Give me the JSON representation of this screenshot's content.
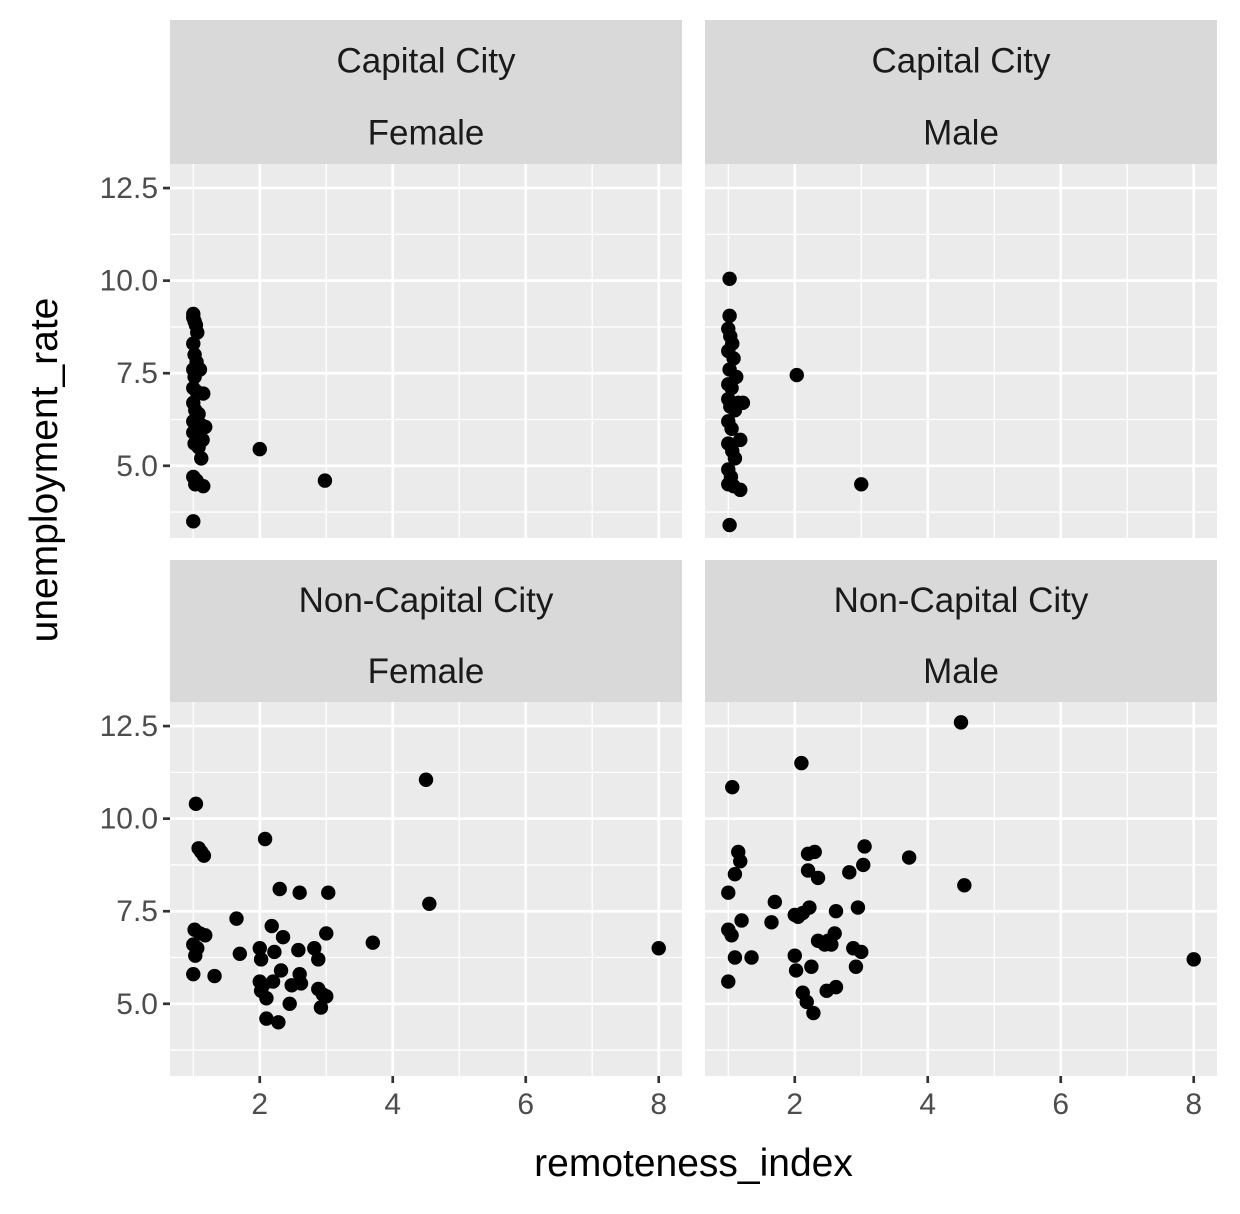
{
  "chart_data": {
    "type": "scatter",
    "xlabel": "remoteness_index",
    "ylabel": "unemployment_rate",
    "xlim": [
      0.65,
      8.35
    ],
    "ylim": [
      3.05,
      13.15
    ],
    "x_ticks": [
      2,
      4,
      6,
      8
    ],
    "x_tick_labels": [
      "2",
      "4",
      "6",
      "8"
    ],
    "y_ticks": [
      5,
      7.5,
      10,
      12.5
    ],
    "y_tick_labels": [
      "5.0",
      "7.5",
      "10.0",
      "12.5"
    ],
    "grid": true,
    "point_color": "#000000",
    "panel_background": "#ebebeb",
    "strip_background": "#d9d9d9",
    "panels": [
      {
        "strip": [
          "Capital City",
          "Female"
        ],
        "points": [
          [
            1.0,
            9.1
          ],
          [
            1.0,
            9.0
          ],
          [
            1.02,
            8.9
          ],
          [
            1.04,
            8.8
          ],
          [
            1.06,
            8.6
          ],
          [
            1.0,
            8.3
          ],
          [
            1.02,
            8.0
          ],
          [
            1.05,
            7.8
          ],
          [
            1.0,
            7.6
          ],
          [
            1.1,
            7.6
          ],
          [
            1.02,
            7.4
          ],
          [
            1.0,
            7.1
          ],
          [
            1.05,
            7.0
          ],
          [
            1.15,
            6.95
          ],
          [
            1.0,
            6.7
          ],
          [
            1.03,
            6.5
          ],
          [
            1.08,
            6.4
          ],
          [
            1.0,
            6.2
          ],
          [
            1.12,
            6.1
          ],
          [
            1.18,
            6.05
          ],
          [
            1.0,
            5.9
          ],
          [
            1.06,
            5.8
          ],
          [
            1.14,
            5.7
          ],
          [
            1.02,
            5.6
          ],
          [
            1.08,
            5.5
          ],
          [
            1.12,
            5.2
          ],
          [
            1.0,
            4.7
          ],
          [
            1.05,
            4.6
          ],
          [
            1.03,
            4.5
          ],
          [
            1.15,
            4.45
          ],
          [
            1.0,
            3.5
          ],
          [
            2.0,
            5.45
          ],
          [
            2.98,
            4.6
          ]
        ]
      },
      {
        "strip": [
          "Capital City",
          "Male"
        ],
        "points": [
          [
            1.02,
            10.05
          ],
          [
            1.02,
            9.05
          ],
          [
            1.0,
            8.7
          ],
          [
            1.03,
            8.5
          ],
          [
            1.06,
            8.3
          ],
          [
            1.0,
            8.1
          ],
          [
            1.08,
            7.9
          ],
          [
            1.02,
            7.6
          ],
          [
            1.12,
            7.4
          ],
          [
            1.0,
            7.2
          ],
          [
            1.05,
            7.1
          ],
          [
            1.0,
            6.8
          ],
          [
            1.15,
            6.7
          ],
          [
            1.22,
            6.7
          ],
          [
            1.03,
            6.6
          ],
          [
            1.1,
            6.5
          ],
          [
            1.0,
            6.2
          ],
          [
            1.05,
            6.0
          ],
          [
            1.18,
            5.7
          ],
          [
            1.0,
            5.6
          ],
          [
            1.06,
            5.4
          ],
          [
            1.1,
            5.2
          ],
          [
            1.0,
            4.9
          ],
          [
            1.04,
            4.7
          ],
          [
            1.0,
            4.5
          ],
          [
            1.08,
            4.45
          ],
          [
            1.18,
            4.35
          ],
          [
            1.02,
            3.4
          ],
          [
            2.03,
            7.45
          ],
          [
            3.0,
            4.5
          ]
        ]
      },
      {
        "strip": [
          "Non-Capital City",
          "Female"
        ],
        "points": [
          [
            1.04,
            10.4
          ],
          [
            1.08,
            9.2
          ],
          [
            1.12,
            9.1
          ],
          [
            1.16,
            9.0
          ],
          [
            1.02,
            7.0
          ],
          [
            1.1,
            6.9
          ],
          [
            1.18,
            6.85
          ],
          [
            1.0,
            6.6
          ],
          [
            1.06,
            6.5
          ],
          [
            1.03,
            6.3
          ],
          [
            1.0,
            5.8
          ],
          [
            1.32,
            5.75
          ],
          [
            1.65,
            7.3
          ],
          [
            1.7,
            6.35
          ],
          [
            2.0,
            6.5
          ],
          [
            2.02,
            6.2
          ],
          [
            2.0,
            5.6
          ],
          [
            2.05,
            5.5
          ],
          [
            2.02,
            5.35
          ],
          [
            2.1,
            5.15
          ],
          [
            2.1,
            4.6
          ],
          [
            2.08,
            9.45
          ],
          [
            2.18,
            7.1
          ],
          [
            2.22,
            6.4
          ],
          [
            2.2,
            5.6
          ],
          [
            2.28,
            4.5
          ],
          [
            2.3,
            8.1
          ],
          [
            2.35,
            6.8
          ],
          [
            2.32,
            5.9
          ],
          [
            2.45,
            5.0
          ],
          [
            2.48,
            5.5
          ],
          [
            2.6,
            8.0
          ],
          [
            2.58,
            6.45
          ],
          [
            2.6,
            5.8
          ],
          [
            2.62,
            5.55
          ],
          [
            2.82,
            6.5
          ],
          [
            2.88,
            6.2
          ],
          [
            2.88,
            5.4
          ],
          [
            2.92,
            4.9
          ],
          [
            2.95,
            5.25
          ],
          [
            3.0,
            5.2
          ],
          [
            3.0,
            6.9
          ],
          [
            3.03,
            8.0
          ],
          [
            3.7,
            6.65
          ],
          [
            4.5,
            11.05
          ],
          [
            4.55,
            7.7
          ],
          [
            8.0,
            6.5
          ]
        ]
      },
      {
        "strip": [
          "Non-Capital City",
          "Male"
        ],
        "points": [
          [
            1.06,
            10.85
          ],
          [
            1.0,
            8.0
          ],
          [
            1.1,
            8.5
          ],
          [
            1.15,
            9.1
          ],
          [
            1.18,
            8.85
          ],
          [
            1.0,
            7.0
          ],
          [
            1.05,
            6.85
          ],
          [
            1.2,
            7.25
          ],
          [
            1.1,
            6.25
          ],
          [
            1.0,
            5.6
          ],
          [
            1.35,
            6.25
          ],
          [
            1.7,
            7.75
          ],
          [
            1.65,
            7.2
          ],
          [
            2.1,
            11.5
          ],
          [
            2.0,
            7.4
          ],
          [
            2.05,
            7.35
          ],
          [
            2.12,
            7.45
          ],
          [
            2.22,
            7.6
          ],
          [
            2.0,
            6.3
          ],
          [
            2.02,
            5.9
          ],
          [
            2.25,
            6.0
          ],
          [
            2.12,
            5.3
          ],
          [
            2.18,
            5.05
          ],
          [
            2.28,
            4.75
          ],
          [
            2.2,
            9.05
          ],
          [
            2.3,
            9.1
          ],
          [
            2.2,
            8.6
          ],
          [
            2.35,
            8.4
          ],
          [
            2.35,
            6.7
          ],
          [
            2.45,
            6.6
          ],
          [
            2.5,
            6.7
          ],
          [
            2.55,
            6.6
          ],
          [
            2.48,
            5.35
          ],
          [
            2.62,
            5.45
          ],
          [
            2.62,
            7.5
          ],
          [
            2.6,
            6.9
          ],
          [
            2.82,
            8.55
          ],
          [
            2.88,
            6.5
          ],
          [
            2.92,
            6.0
          ],
          [
            2.95,
            7.6
          ],
          [
            3.0,
            6.4
          ],
          [
            3.03,
            8.75
          ],
          [
            3.05,
            9.25
          ],
          [
            3.72,
            8.95
          ],
          [
            4.5,
            12.6
          ],
          [
            4.55,
            8.2
          ],
          [
            8.0,
            6.2
          ]
        ]
      }
    ]
  }
}
